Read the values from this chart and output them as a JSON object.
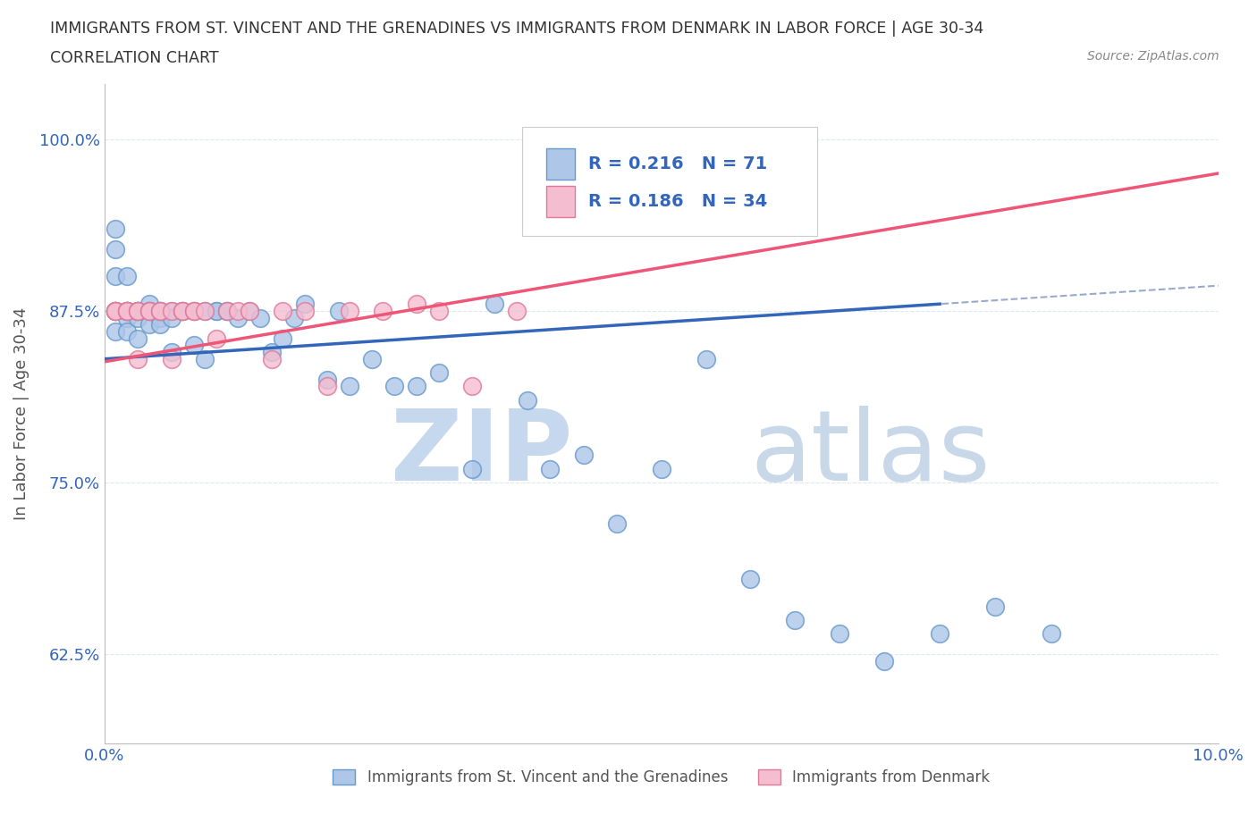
{
  "title_line1": "IMMIGRANTS FROM ST. VINCENT AND THE GRENADINES VS IMMIGRANTS FROM DENMARK IN LABOR FORCE | AGE 30-34",
  "title_line2": "CORRELATION CHART",
  "source_text": "Source: ZipAtlas.com",
  "ylabel": "In Labor Force | Age 30-34",
  "xlim": [
    0.0,
    0.1
  ],
  "ylim": [
    0.56,
    1.04
  ],
  "yticks": [
    0.625,
    0.75,
    0.875,
    1.0
  ],
  "ytick_labels": [
    "62.5%",
    "75.0%",
    "87.5%",
    "100.0%"
  ],
  "xticks": [
    0.0,
    0.1
  ],
  "xtick_labels": [
    "0.0%",
    "10.0%"
  ],
  "background_color": "#ffffff",
  "watermark_color": "#ccdaeb",
  "blue_scatter_color": "#aec6e8",
  "blue_scatter_edge": "#6699cc",
  "pink_scatter_color": "#f5bdd0",
  "pink_scatter_edge": "#e07898",
  "blue_line_color": "#3366bb",
  "blue_line_dashed_color": "#99aacc",
  "pink_line_color": "#ee5577",
  "R_blue": 0.216,
  "N_blue": 71,
  "R_pink": 0.186,
  "N_pink": 34,
  "legend_label_blue": "Immigrants from St. Vincent and the Grenadines",
  "legend_label_pink": "Immigrants from Denmark",
  "blue_x": [
    0.001,
    0.001,
    0.001,
    0.001,
    0.001,
    0.001,
    0.002,
    0.002,
    0.002,
    0.002,
    0.002,
    0.002,
    0.003,
    0.003,
    0.003,
    0.003,
    0.003,
    0.004,
    0.004,
    0.004,
    0.004,
    0.005,
    0.005,
    0.005,
    0.006,
    0.006,
    0.006,
    0.007,
    0.007,
    0.008,
    0.008,
    0.009,
    0.009,
    0.01,
    0.01,
    0.011,
    0.011,
    0.012,
    0.013,
    0.014,
    0.015,
    0.016,
    0.017,
    0.018,
    0.02,
    0.021,
    0.022,
    0.024,
    0.026,
    0.028,
    0.03,
    0.033,
    0.035,
    0.038,
    0.04,
    0.043,
    0.046,
    0.05,
    0.054,
    0.058,
    0.062,
    0.066,
    0.07,
    0.075,
    0.08,
    0.085,
    0.001,
    0.002,
    0.003,
    0.004,
    0.005
  ],
  "blue_y": [
    0.875,
    0.875,
    0.86,
    0.9,
    0.92,
    0.935,
    0.875,
    0.875,
    0.875,
    0.9,
    0.87,
    0.86,
    0.875,
    0.875,
    0.875,
    0.855,
    0.87,
    0.88,
    0.875,
    0.875,
    0.865,
    0.875,
    0.87,
    0.865,
    0.845,
    0.875,
    0.87,
    0.875,
    0.875,
    0.85,
    0.875,
    0.875,
    0.84,
    0.875,
    0.875,
    0.875,
    0.875,
    0.87,
    0.875,
    0.87,
    0.845,
    0.855,
    0.87,
    0.88,
    0.825,
    0.875,
    0.82,
    0.84,
    0.82,
    0.82,
    0.83,
    0.76,
    0.88,
    0.81,
    0.76,
    0.77,
    0.72,
    0.76,
    0.84,
    0.68,
    0.65,
    0.64,
    0.62,
    0.64,
    0.66,
    0.64,
    0.875,
    0.875,
    0.875,
    0.875,
    0.875
  ],
  "pink_x": [
    0.001,
    0.001,
    0.001,
    0.002,
    0.002,
    0.002,
    0.003,
    0.003,
    0.003,
    0.004,
    0.004,
    0.005,
    0.005,
    0.006,
    0.006,
    0.007,
    0.007,
    0.008,
    0.008,
    0.009,
    0.01,
    0.011,
    0.012,
    0.013,
    0.015,
    0.016,
    0.018,
    0.02,
    0.022,
    0.025,
    0.028,
    0.03,
    0.033,
    0.037
  ],
  "pink_y": [
    0.875,
    0.875,
    0.875,
    0.875,
    0.875,
    0.875,
    0.875,
    0.84,
    0.875,
    0.875,
    0.875,
    0.875,
    0.875,
    0.84,
    0.875,
    0.875,
    0.875,
    0.875,
    0.875,
    0.875,
    0.855,
    0.875,
    0.875,
    0.875,
    0.84,
    0.875,
    0.875,
    0.82,
    0.875,
    0.875,
    0.88,
    0.875,
    0.82,
    0.875
  ],
  "grid_color": "#dde8f0",
  "title_color": "#333333",
  "axis_label_color": "#555555",
  "tick_label_color": "#3366bb"
}
